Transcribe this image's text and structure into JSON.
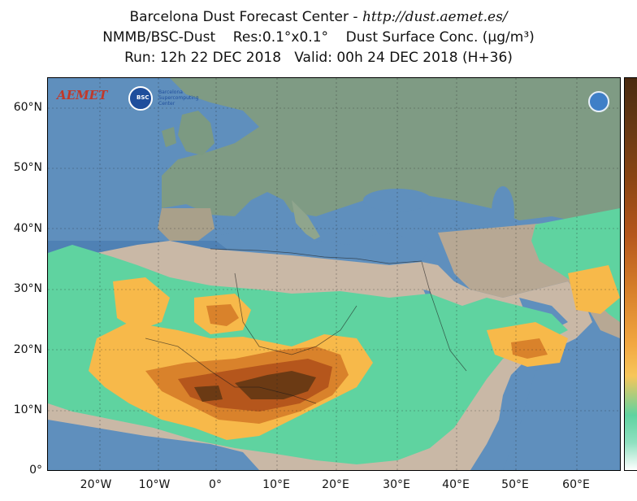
{
  "header": {
    "title_prefix": "Barcelona Dust Forecast Center - ",
    "title_url": "http://dust.aemet.es/",
    "line2": "NMMB/BSC-Dust    Res:0.1°x0.1°    Dust Surface Conc. (µg/m³)",
    "line3": "Run: 12h 22 DEC 2018   Valid: 00h 24 DEC 2018 (H+36)"
  },
  "axes": {
    "y_ticks": [
      "60°N",
      "50°N",
      "40°N",
      "30°N",
      "20°N",
      "10°N",
      "0°"
    ],
    "x_ticks": [
      "20°W",
      "10°W",
      "0°",
      "10°E",
      "20°E",
      "30°E",
      "40°E",
      "50°E",
      "60°E"
    ]
  },
  "logos": {
    "aemet": "AEMET",
    "bsc": "BSC",
    "bsc_caption": "Barcelona Supercomputing Center"
  },
  "colors": {
    "ocean": "#5f8fbd",
    "land": "#7f9b84",
    "desert_land": "#c9b8a6",
    "level_1": "#5fd3a0",
    "level_2": "#f7b94a",
    "level_3": "#d9822b",
    "level_4": "#b5561c",
    "level_5": "#6b3a14"
  }
}
